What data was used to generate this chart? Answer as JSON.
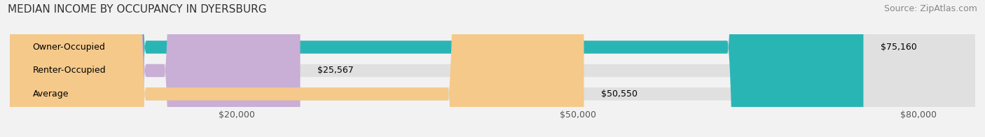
{
  "title": "MEDIAN INCOME BY OCCUPANCY IN DYERSBURG",
  "source": "Source: ZipAtlas.com",
  "categories": [
    "Owner-Occupied",
    "Renter-Occupied",
    "Average"
  ],
  "values": [
    75160,
    25567,
    50550
  ],
  "labels": [
    "$75,160",
    "$25,567",
    "$50,550"
  ],
  "bar_colors": [
    "#2ab5b5",
    "#c9aed6",
    "#f5c98a"
  ],
  "background_color": "#f2f2f2",
  "bar_bg_color": "#e0e0e0",
  "xlim": [
    0,
    85000
  ],
  "xticks": [
    20000,
    50000,
    80000
  ],
  "xticklabels": [
    "$20,000",
    "$50,000",
    "$80,000"
  ],
  "title_fontsize": 11,
  "source_fontsize": 9,
  "label_fontsize": 9,
  "cat_fontsize": 9,
  "bar_height": 0.55
}
